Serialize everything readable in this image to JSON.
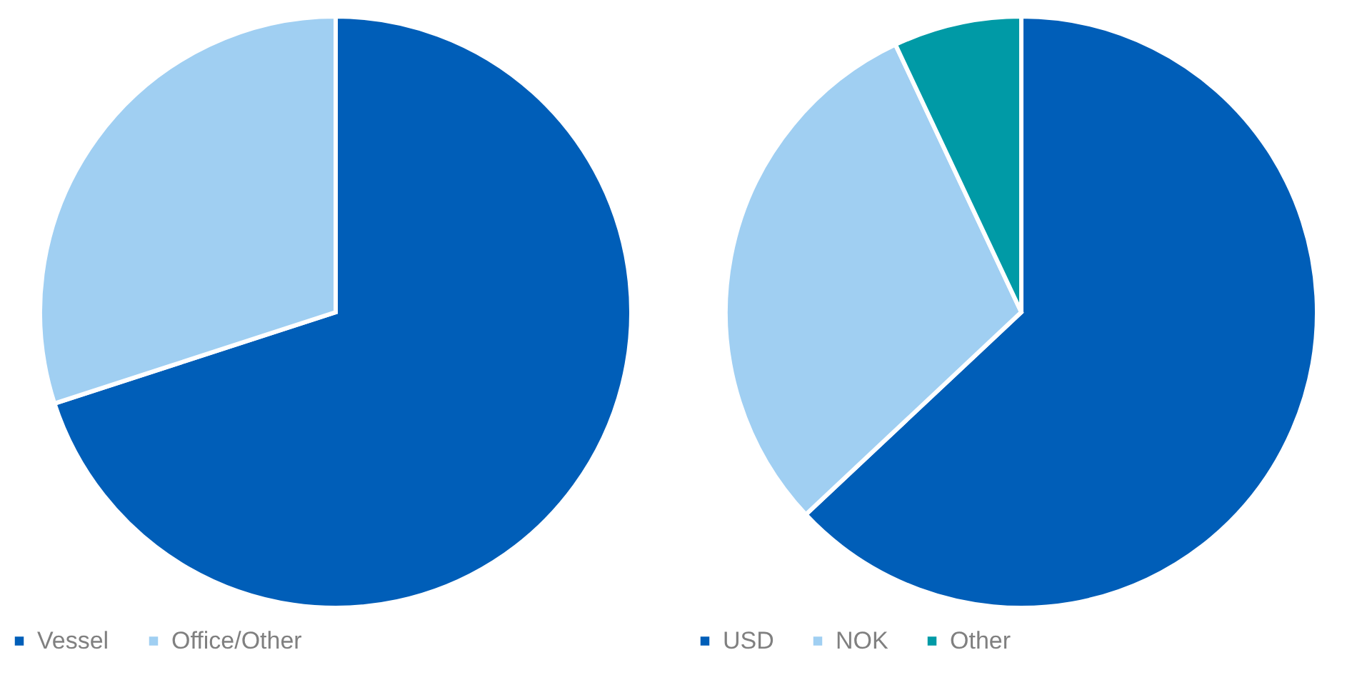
{
  "chart_data": [
    {
      "type": "pie",
      "categories": [
        "Vessel",
        "Office/Other"
      ],
      "values": [
        70,
        30
      ],
      "colors": [
        "#005eb8",
        "#a0cff2"
      ],
      "legend": "bottom"
    },
    {
      "type": "pie",
      "categories": [
        "USD",
        "NOK",
        "Other"
      ],
      "values": [
        63,
        30,
        7
      ],
      "colors": [
        "#005eb8",
        "#a0cff2",
        "#009aa6"
      ],
      "legend": "bottom"
    }
  ]
}
